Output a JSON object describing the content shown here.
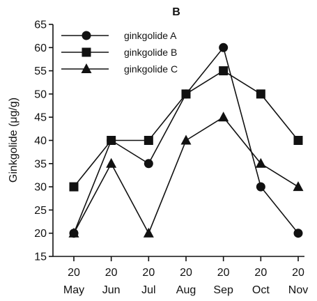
{
  "chart_data": {
    "type": "line",
    "title": "B",
    "xlabel": "",
    "ylabel": "Ginkgolide (μg/g)",
    "ylim": [
      15,
      65
    ],
    "yticks": [
      15,
      20,
      25,
      30,
      35,
      40,
      45,
      50,
      55,
      60,
      65
    ],
    "categories": [
      {
        "day": "20",
        "month": "May"
      },
      {
        "day": "20",
        "month": "Jun"
      },
      {
        "day": "20",
        "month": "Jul"
      },
      {
        "day": "20",
        "month": "Aug"
      },
      {
        "day": "20",
        "month": "Sep"
      },
      {
        "day": "20",
        "month": "Oct"
      },
      {
        "day": "20",
        "month": "Nov"
      }
    ],
    "legend_position": "top-left",
    "grid": false,
    "series": [
      {
        "name": "ginkgolide A",
        "marker": "circle",
        "values": [
          20,
          40,
          35,
          50,
          60,
          30,
          20
        ]
      },
      {
        "name": "ginkgolide B",
        "marker": "square",
        "values": [
          30,
          40,
          40,
          50,
          55,
          50,
          40
        ]
      },
      {
        "name": "ginkgolide C",
        "marker": "triangle",
        "values": [
          20,
          35,
          20,
          40,
          45,
          35,
          30
        ]
      }
    ]
  }
}
